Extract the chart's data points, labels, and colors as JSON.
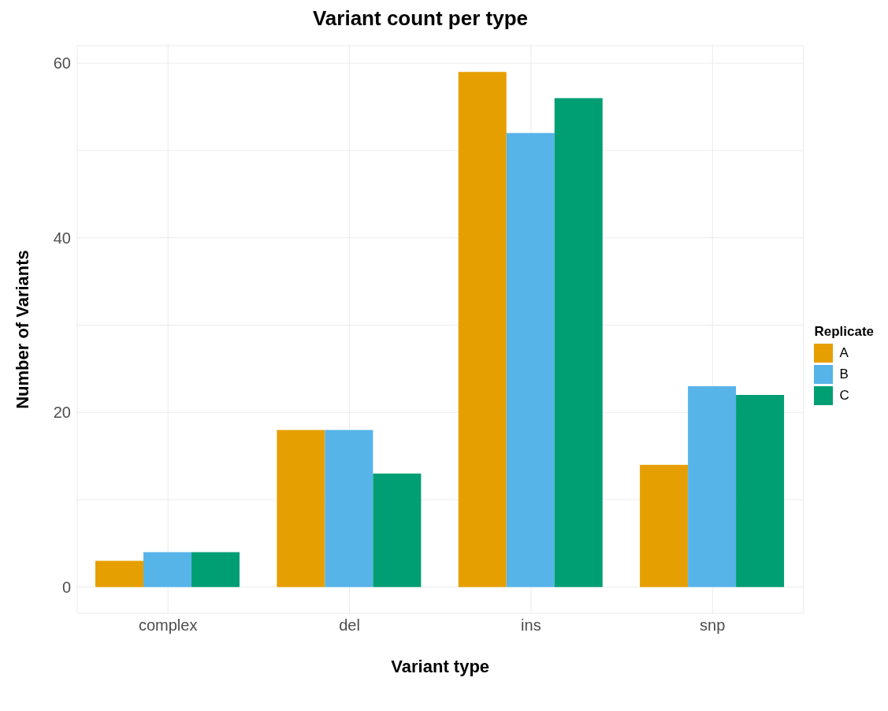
{
  "chart_data": {
    "type": "bar",
    "title": "Variant count per type",
    "xlabel": "Variant type",
    "ylabel": "Number of Variants",
    "legend_title": "Replicate",
    "categories": [
      "complex",
      "del",
      "ins",
      "snp"
    ],
    "series": [
      {
        "name": "A",
        "color": "#e69f00",
        "values": [
          3,
          18,
          59,
          14
        ]
      },
      {
        "name": "B",
        "color": "#56b4e9",
        "values": [
          4,
          18,
          52,
          23
        ]
      },
      {
        "name": "C",
        "color": "#009e73",
        "values": [
          4,
          13,
          56,
          22
        ]
      }
    ],
    "ylim": [
      -3,
      62
    ],
    "yticks": [
      0,
      {
        "value": 10,
        "label": null
      },
      20,
      {
        "value": 30,
        "label": null
      },
      40,
      {
        "value": 50,
        "label": null
      },
      60
    ],
    "grid": true,
    "legend": "right"
  }
}
